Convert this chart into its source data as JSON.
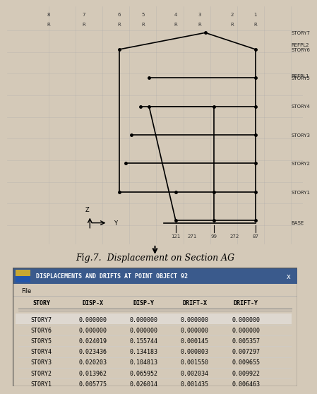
{
  "title": "Fig.7.  Displacement on Section AG",
  "title_fontsize": 9,
  "bg_color": "#d4c9b8",
  "table_title": "DISPLACEMENTS AND DRIFTS AT POINT OBJECT 92",
  "table_title_bg": "#4a6fa5",
  "table_title_color": "white",
  "file_label": "File",
  "columns": [
    "STORY",
    "DISP-X",
    "DISP-Y",
    "DRIFT-X",
    "DRIFT-Y"
  ],
  "rows": [
    [
      "STORY7",
      "0.000000",
      "0.000000",
      "0.000000",
      "0.000000"
    ],
    [
      "STORY6",
      "0.000000",
      "0.000000",
      "0.000000",
      "0.000000"
    ],
    [
      "STORY5",
      "0.024019",
      "0.155744",
      "0.000145",
      "0.005357"
    ],
    [
      "STORY4",
      "0.023436",
      "0.134183",
      "0.000803",
      "0.007297"
    ],
    [
      "STORY3",
      "0.020203",
      "0.104813",
      "0.001550",
      "0.009655"
    ],
    [
      "STORY2",
      "0.013962",
      "0.065952",
      "0.002034",
      "0.009922"
    ],
    [
      "STORY1",
      "0.005775",
      "0.026014",
      "0.001435",
      "0.006463"
    ]
  ],
  "structure_labels_top": [
    "8",
    "7",
    "6",
    "5",
    "4",
    "3",
    "2",
    "1"
  ],
  "structure_labels_top2": [
    "R",
    "R",
    "R",
    "R",
    "R",
    "R",
    "R",
    "R"
  ],
  "structure_right_labels": [
    "STORY7",
    "REFPL2",
    "STORY6",
    "REFPL1",
    "STORY5",
    "STORY4",
    "STORY3",
    "STORY2",
    "STORY1",
    "BASE"
  ],
  "structure_bottom_labels": [
    "121",
    "271",
    "99",
    "272",
    "87"
  ],
  "axis_label_z": "Z",
  "axis_label_y": "Y"
}
